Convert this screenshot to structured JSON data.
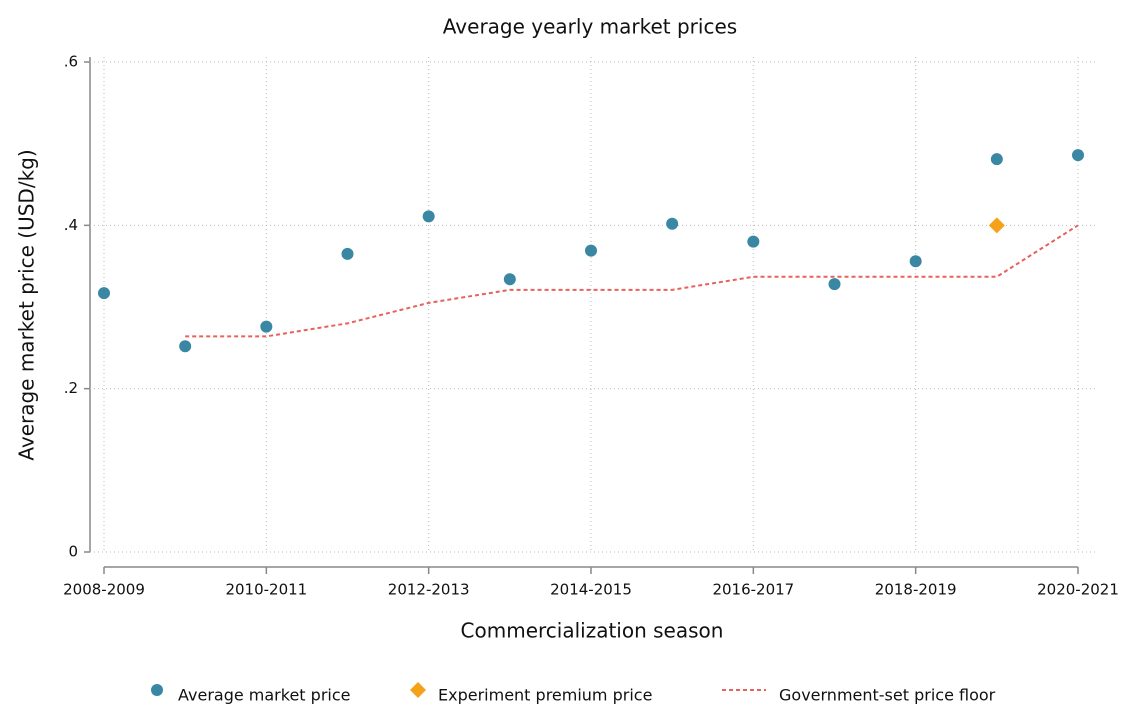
{
  "chart_data": {
    "type": "scatter",
    "title": "Average yearly market prices",
    "x_label": "Commercialization season",
    "y_label": "Average market price (USD/kg)",
    "categories": [
      "2008-2009",
      null,
      "2010-2011",
      null,
      "2012-2013",
      null,
      "2014-2015",
      null,
      "2016-2017",
      null,
      "2018-2019",
      null,
      "2020-2021"
    ],
    "series": [
      {
        "name": "Average market price",
        "color": "#3a87a3",
        "style": "dot",
        "values": [
          0.317,
          0.252,
          0.276,
          0.365,
          0.411,
          0.334,
          0.369,
          0.402,
          0.38,
          0.328,
          0.356,
          0.481,
          0.486
        ]
      },
      {
        "name": "Experiment premium price",
        "color": "#f5a21b",
        "style": "diamond",
        "values": [
          null,
          null,
          null,
          null,
          null,
          null,
          null,
          null,
          null,
          null,
          null,
          0.4,
          null
        ]
      },
      {
        "name": "Government-set price floor",
        "color": "#e8615b",
        "style": "dashed-line",
        "values": [
          null,
          0.264,
          0.264,
          0.28,
          0.305,
          0.321,
          0.321,
          0.321,
          0.337,
          0.337,
          0.337,
          0.337,
          0.4
        ]
      }
    ],
    "ylim": [
      0,
      0.6
    ],
    "yticks": [
      0,
      {
        "value": 0.2,
        "label": ".2"
      },
      {
        "value": 0.4,
        "label": ".4"
      },
      {
        "value": 0.6,
        "label": ".6"
      }
    ],
    "grid": true,
    "legend": "bottom"
  }
}
